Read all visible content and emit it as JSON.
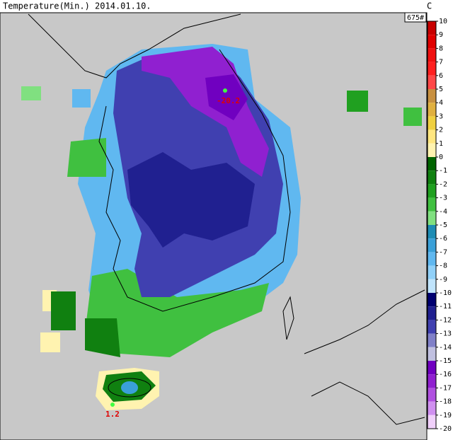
{
  "header": {
    "title": "Temperature(Min.)  2014.01.10.",
    "unit": "C",
    "station_count": "675#"
  },
  "colorbar": {
    "labels": [
      10,
      9,
      8,
      7,
      6,
      5,
      4,
      3,
      2,
      1,
      0,
      -1,
      -2,
      -3,
      -4,
      -5,
      -6,
      -7,
      -8,
      -9,
      -10,
      -11,
      -12,
      -13,
      -14,
      -15,
      -16,
      -17,
      -18,
      -19,
      -20
    ],
    "colors": [
      "#c80000",
      "#e00000",
      "#f01010",
      "#ff2020",
      "#ff4848",
      "#c89040",
      "#e0b040",
      "#f0d040",
      "#ffe680",
      "#fff3b0",
      "#006400",
      "#108010",
      "#20a020",
      "#40c040",
      "#80e080",
      "#1e8cb4",
      "#3aa0d8",
      "#60b8f0",
      "#90d0f8",
      "#c0e4fc",
      "#000070",
      "#202090",
      "#4040b0",
      "#8080c8",
      "#c0c0e0",
      "#7000c0",
      "#9020d0",
      "#b050e0",
      "#d090f0",
      "#f0d0fa"
    ]
  },
  "annotations": [
    {
      "label": "-20.2"
    },
    {
      "label": "1.2"
    }
  ]
}
